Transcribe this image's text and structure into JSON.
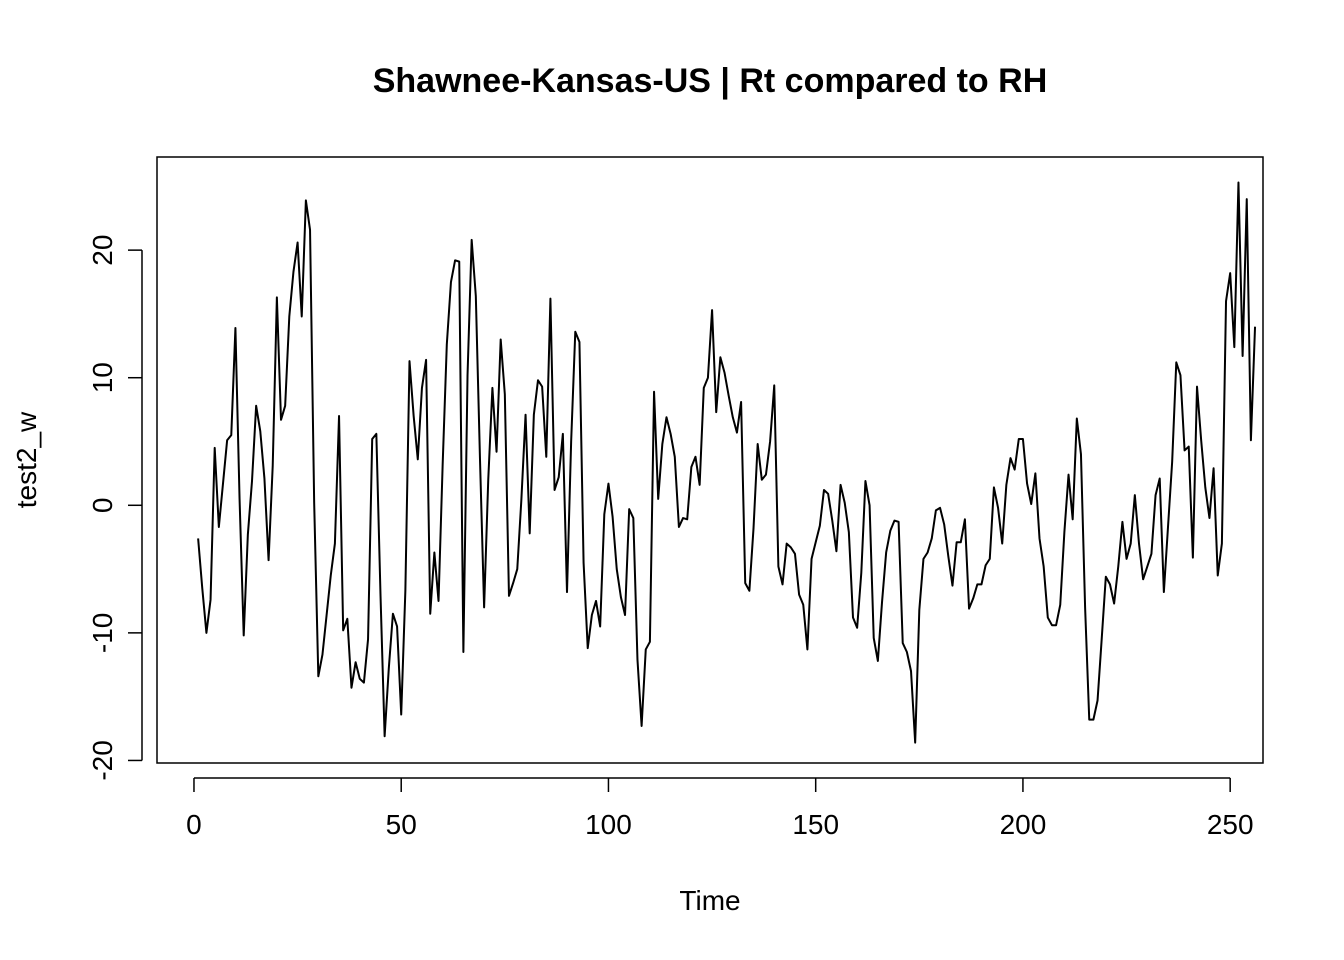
{
  "chart_data": {
    "type": "line",
    "title": "Shawnee-Kansas-US | Rt compared to RH",
    "xlabel": "Time",
    "ylabel": "test2_w",
    "xlim": [
      -8.92,
      257.92
    ],
    "ylim": [
      -20.2,
      27.3
    ],
    "x_ticks": [
      0,
      50,
      100,
      150,
      200,
      250
    ],
    "x_tick_labels": [
      "0",
      "50",
      "100",
      "150",
      "200",
      "250"
    ],
    "y_ticks": [
      -20,
      -10,
      0,
      10,
      20
    ],
    "y_tick_labels": [
      "-20",
      "-10",
      "0",
      "10",
      "20"
    ],
    "grid": false,
    "series": [
      {
        "x_start": 1,
        "x_step": 1,
        "color": "#000000",
        "values": [
          -2.6,
          -6.5,
          -10.0,
          -7.4,
          4.5,
          -1.7,
          1.7,
          5.1,
          5.5,
          13.9,
          0.5,
          -10.2,
          -2.3,
          1.9,
          7.8,
          5.8,
          2.1,
          -4.3,
          3.1,
          16.3,
          6.7,
          7.8,
          14.8,
          18.3,
          20.6,
          14.8,
          23.9,
          21.6,
          0.2,
          -13.4,
          -11.7,
          -8.6,
          -5.5,
          -3.0,
          7.0,
          -9.8,
          -8.9,
          -14.3,
          -12.3,
          -13.6,
          -13.9,
          -10.5,
          5.2,
          5.6,
          -7.0,
          -18.1,
          -12.8,
          -8.5,
          -9.5,
          -16.4,
          -6.7,
          11.3,
          7.0,
          3.6,
          9.2,
          11.4,
          -8.5,
          -3.7,
          -7.5,
          3.2,
          12.6,
          17.5,
          19.2,
          19.1,
          -11.5,
          10.2,
          20.8,
          16.4,
          3.7,
          -8.0,
          2.0,
          9.2,
          4.2,
          13.0,
          8.7,
          -7.1,
          -6.1,
          -5.0,
          0.5,
          7.1,
          -2.2,
          7.1,
          9.8,
          9.3,
          3.8,
          16.2,
          1.2,
          2.2,
          5.6,
          -6.8,
          5.0,
          13.6,
          12.8,
          -4.5,
          -11.2,
          -8.6,
          -7.5,
          -9.5,
          -0.7,
          1.7,
          -0.9,
          -5.0,
          -7.2,
          -8.6,
          -0.3,
          -1.0,
          -12.1,
          -17.3,
          -11.3,
          -10.7,
          8.9,
          0.5,
          4.8,
          6.9,
          5.6,
          3.8,
          -1.7,
          -1.0,
          -1.1,
          3.0,
          3.8,
          1.6,
          9.2,
          10.0,
          15.3,
          7.3,
          11.6,
          10.4,
          8.6,
          6.9,
          5.7,
          8.1,
          -6.1,
          -6.7,
          -1.8,
          4.8,
          2.0,
          2.4,
          5.0,
          9.4,
          -4.8,
          -6.2,
          -3.0,
          -3.3,
          -3.8,
          -7.0,
          -7.8,
          -11.3,
          -4.2,
          -2.9,
          -1.6,
          1.2,
          0.9,
          -1.2,
          -3.6,
          1.6,
          0.2,
          -2.1,
          -8.8,
          -9.6,
          -5.3,
          1.9,
          0.0,
          -10.4,
          -12.2,
          -7.6,
          -3.7,
          -2.0,
          -1.2,
          -1.3,
          -10.8,
          -11.5,
          -13.0,
          -18.6,
          -8.2,
          -4.2,
          -3.7,
          -2.6,
          -0.4,
          -0.2,
          -1.5,
          -4.0,
          -6.3,
          -2.9,
          -2.9,
          -1.1,
          -8.1,
          -7.3,
          -6.2,
          -6.2,
          -4.7,
          -4.2,
          1.4,
          -0.2,
          -3.0,
          1.6,
          3.7,
          2.8,
          5.2,
          5.2,
          1.7,
          0.1,
          2.5,
          -2.6,
          -4.8,
          -8.8,
          -9.4,
          -9.4,
          -7.8,
          -2.1,
          2.4,
          -1.1,
          6.8,
          4.0,
          -8.0,
          -16.8,
          -16.8,
          -15.3,
          -10.5,
          -5.6,
          -6.2,
          -7.7,
          -4.8,
          -1.3,
          -4.2,
          -3.0,
          0.8,
          -3.0,
          -5.8,
          -4.8,
          -3.8,
          0.8,
          2.1,
          -6.8,
          -1.7,
          3.4,
          11.2,
          10.2,
          4.3,
          4.6,
          -4.1,
          9.3,
          5.1,
          1.4,
          -1.0,
          2.9,
          -5.5,
          -3.0,
          16.0,
          18.2,
          12.4,
          25.3,
          11.7,
          24.0,
          5.1,
          14.0
        ]
      }
    ]
  }
}
